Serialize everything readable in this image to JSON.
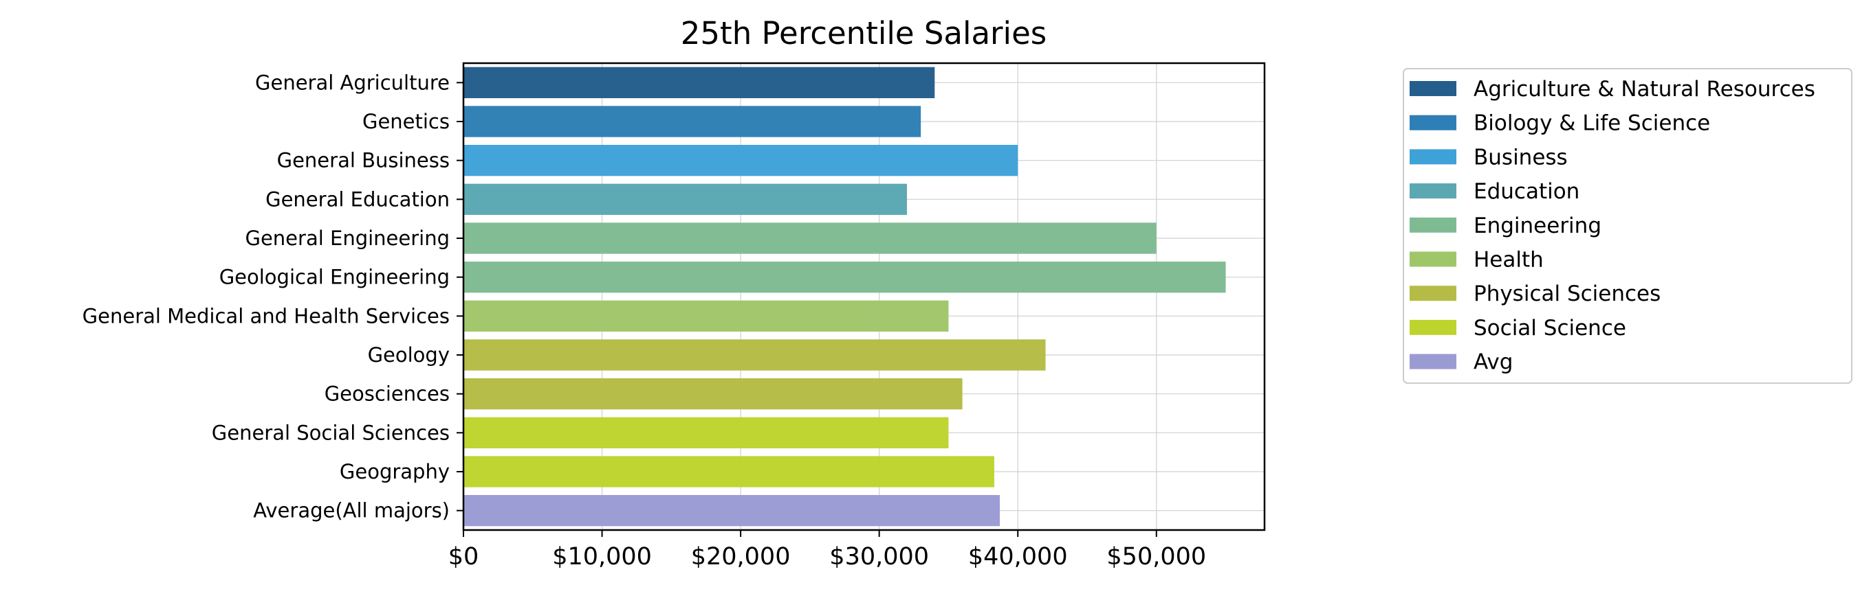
{
  "chart_data": {
    "type": "bar",
    "orientation": "horizontal",
    "title": "25th Percentile Salaries",
    "xlabel": "",
    "ylabel": "",
    "xlim": [
      0,
      57800
    ],
    "x_ticks": [
      0,
      10000,
      20000,
      30000,
      40000,
      50000
    ],
    "x_tick_labels": [
      "$0",
      "$10,000",
      "$20,000",
      "$30,000",
      "$40,000",
      "$50,000"
    ],
    "grid": true,
    "legend_position": "outside-right",
    "categories": [
      "General Agriculture",
      "Genetics",
      "General Business",
      "General Education",
      "General Engineering",
      "Geological Engineering",
      "General Medical and Health Services",
      "Geology",
      "Geosciences",
      "General Social Sciences",
      "Geography",
      "Average(All majors)"
    ],
    "values": [
      34000,
      33000,
      40000,
      32000,
      50000,
      55000,
      35000,
      42000,
      36000,
      35000,
      38300,
      38700
    ],
    "groups": [
      "Agriculture & Natural Resources",
      "Biology & Life Science",
      "Business",
      "Education",
      "Engineering",
      "Engineering",
      "Health",
      "Physical Sciences",
      "Physical Sciences",
      "Social Science",
      "Social Science",
      "Avg"
    ],
    "legend": [
      {
        "label": "Agriculture & Natural Resources",
        "color": "#245e8c"
      },
      {
        "label": "Biology & Life Science",
        "color": "#2e7fb5"
      },
      {
        "label": "Business",
        "color": "#3ea2d8"
      },
      {
        "label": "Education",
        "color": "#5ba8b3"
      },
      {
        "label": "Engineering",
        "color": "#7fbb92"
      },
      {
        "label": "Health",
        "color": "#a0c66a"
      },
      {
        "label": "Physical Sciences",
        "color": "#b5bc45"
      },
      {
        "label": "Social Science",
        "color": "#bdd42e"
      },
      {
        "label": "Avg",
        "color": "#9b9bd4"
      }
    ]
  }
}
